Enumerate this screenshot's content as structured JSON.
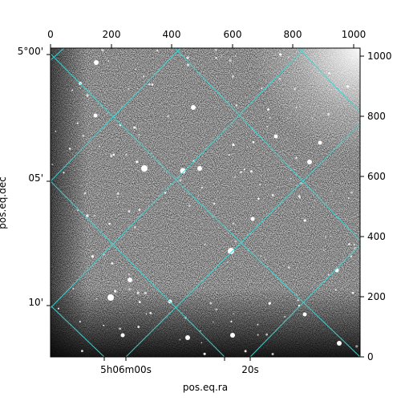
{
  "image": {
    "description_kind": "astronomical grayscale image with WCS grid overlay",
    "colormap": "gray",
    "grid_color": "#3fd6d6"
  },
  "axes": {
    "xlabel": "pos.eq.ra",
    "ylabel": "pos.eq.dec",
    "top_ticks": [
      "0",
      "200",
      "400",
      "600",
      "800",
      "1000"
    ],
    "right_ticks": [
      "0",
      "200",
      "400",
      "600",
      "800",
      "1000"
    ],
    "bottom_ticks": [
      "5h06m00s",
      "20s"
    ],
    "left_ticks": [
      "5°00'",
      "05'",
      "10'"
    ]
  }
}
